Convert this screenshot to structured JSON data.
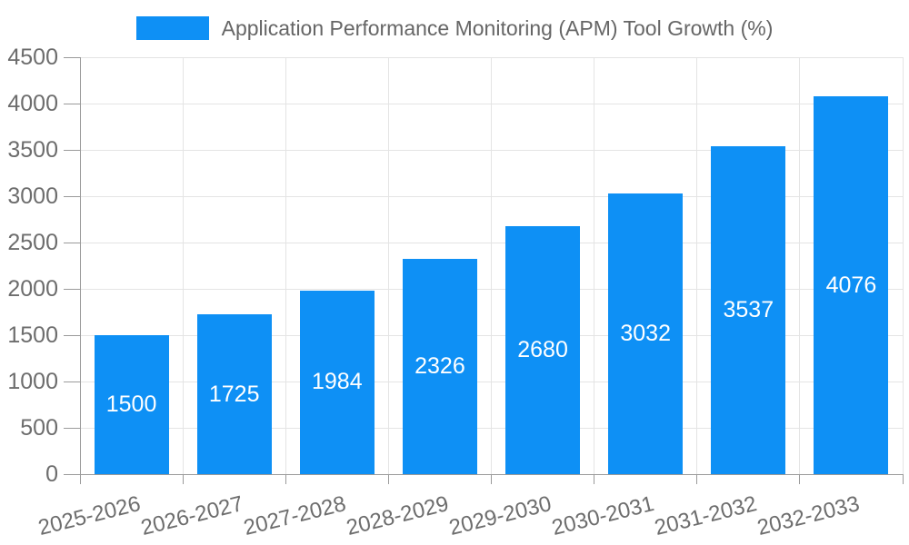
{
  "legend": {
    "label": "Application Performance Monitoring (APM) Tool Growth (%)"
  },
  "colors": {
    "bar": "#0e90f5",
    "value_label": "#ffffff",
    "legend_text": "#666666",
    "axis_label": "#6d6d6d",
    "axis_line": "#9a9a9a",
    "grid_line": "#e4e4e4",
    "background": "#ffffff"
  },
  "chart_data": {
    "type": "bar",
    "title": "Application Performance Monitoring (APM) Tool Growth (%)",
    "categories": [
      "2025-2026",
      "2026-2027",
      "2027-2028",
      "2028-2029",
      "2029-2030",
      "2030-2031",
      "2031-2032",
      "2032-2033"
    ],
    "values": [
      1500,
      1725,
      1984,
      2326,
      2680,
      3032,
      3537,
      4076
    ],
    "xlabel": "",
    "ylabel": "",
    "ylim": [
      0,
      4500
    ],
    "ytick_step": 500,
    "yticks": [
      0,
      500,
      1000,
      1500,
      2000,
      2500,
      3000,
      3500,
      4000,
      4500
    ],
    "grid": true,
    "legend_position": "top",
    "value_labels": "inside-center",
    "x_label_rotation_deg": -14
  }
}
